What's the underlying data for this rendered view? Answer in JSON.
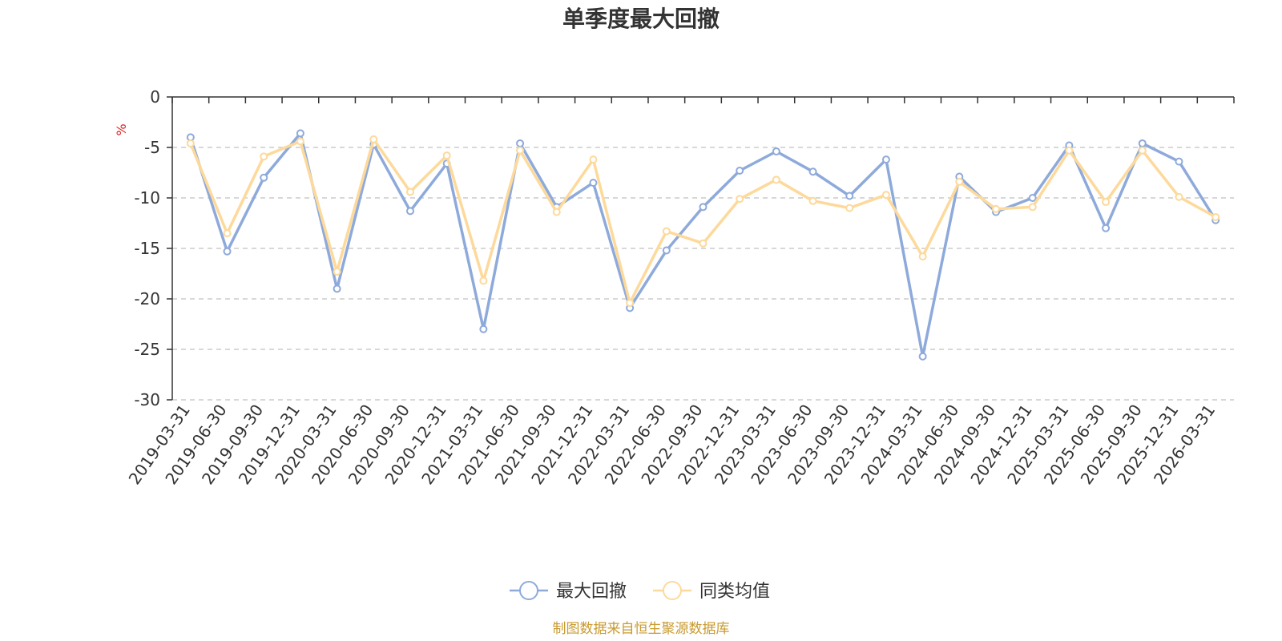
{
  "chart_data": {
    "type": "line",
    "title": "单季度最大回撤",
    "ylabel": "%",
    "ylim": [
      -30,
      0
    ],
    "yticks": [
      0,
      -5,
      -10,
      -15,
      -20,
      -25,
      -30
    ],
    "grid": true,
    "legend_position": "bottom-center",
    "categories": [
      "2019-03-31",
      "2019-06-30",
      "2019-09-30",
      "2019-12-31",
      "2020-03-31",
      "2020-06-30",
      "2020-09-30",
      "2020-12-31",
      "2021-03-31",
      "2021-06-30",
      "2021-09-30",
      "2021-12-31",
      "2022-03-31",
      "2022-06-30",
      "2022-09-30",
      "2022-12-31",
      "2023-03-31",
      "2023-06-30",
      "2023-09-30",
      "2023-12-31",
      "2024-03-31",
      "2024-06-30",
      "2024-09-30",
      "2024-12-31",
      "2025-03-31",
      "2025-06-30",
      "2025-09-30",
      "2025-12-31",
      "2026-03-31"
    ],
    "series": [
      {
        "name": "最大回撤",
        "color": "#8eaadb",
        "values": [
          -4.0,
          -15.3,
          -8.0,
          -3.6,
          -19.0,
          -4.7,
          -11.3,
          -6.6,
          -23.0,
          -4.6,
          -10.9,
          -8.5,
          -20.9,
          -15.2,
          -10.9,
          -7.3,
          -5.4,
          -7.4,
          -9.8,
          -6.2,
          -25.7,
          -7.9,
          -11.4,
          -10.0,
          -4.8,
          -13.0,
          -4.6,
          -6.4,
          -12.2
        ]
      },
      {
        "name": "同类均值",
        "color": "#fdd99b",
        "values": [
          -4.6,
          -13.5,
          -5.9,
          -4.4,
          -17.3,
          -4.2,
          -9.4,
          -5.8,
          -18.2,
          -5.3,
          -11.4,
          -6.2,
          -20.4,
          -13.3,
          -14.5,
          -10.1,
          -8.2,
          -10.3,
          -11.0,
          -9.7,
          -15.8,
          -8.4,
          -11.1,
          -10.9,
          -5.3,
          -10.4,
          -5.3,
          -9.9,
          -11.9
        ]
      }
    ]
  },
  "source_note": "制图数据来自恒生聚源数据库"
}
